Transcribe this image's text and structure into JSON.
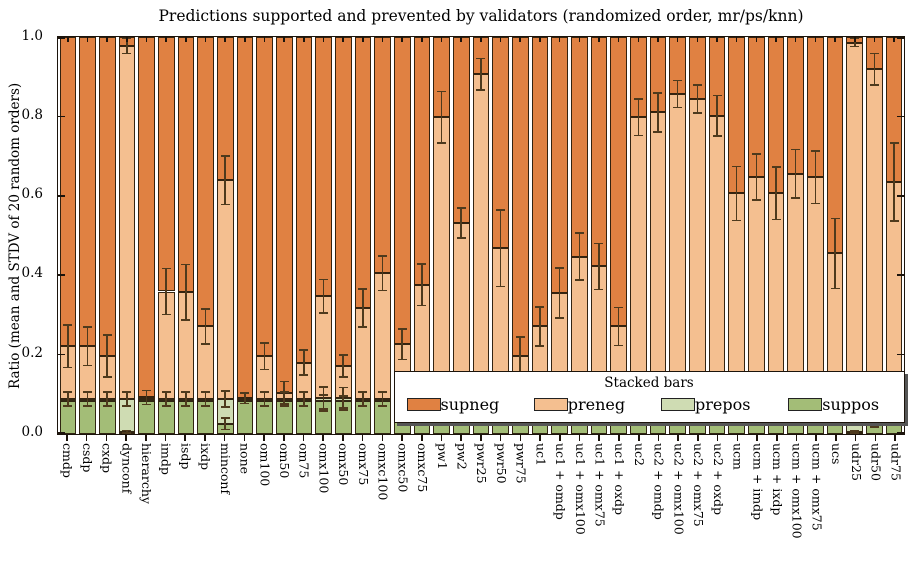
{
  "title": "Predictions supported and prevented by validators (randomized order, mr/ps/knn)",
  "ylabel": "Ratio (mean and STDV of 20 random orders)",
  "yticks": [
    "0.0",
    "0.2",
    "0.4",
    "0.6",
    "0.8",
    "1.0"
  ],
  "legend": {
    "title": "Stacked bars",
    "entries": [
      {
        "label": "supneg",
        "color": "#e08142"
      },
      {
        "label": "preneg",
        "color": "#f4bf90"
      },
      {
        "label": "prepos",
        "color": "#cfdcb3"
      },
      {
        "label": "suppos",
        "color": "#a3bd77"
      }
    ]
  },
  "colors": {
    "supneg": "#e08142",
    "preneg": "#f4bf90",
    "prepos": "#cfdcb3",
    "suppos": "#a3bd77",
    "edge": "#2a1c0c",
    "errorbar": "#4e3a1d",
    "spine": "#1c140c"
  },
  "chart_data": {
    "type": "bar",
    "variant": "stacked-vertical-with-errorbars",
    "ylim": [
      0,
      1
    ],
    "stack_order": [
      "suppos",
      "prepos",
      "preneg",
      "supneg"
    ],
    "note": "preneg_top is cumulative top of preneg segment; supneg fills to 1.0; stdv is error bar at preneg/supneg boundary; base_stdv is error bar at green-stack top (~0.088)",
    "bars": [
      {
        "label": "cmdp",
        "suppos": 0.083,
        "prepos": 0.005,
        "preneg_top": 0.221,
        "stdv": 0.055,
        "base_stdv": 0.02
      },
      {
        "label": "csdp",
        "suppos": 0.083,
        "prepos": 0.005,
        "preneg_top": 0.221,
        "stdv": 0.05,
        "base_stdv": 0.02
      },
      {
        "label": "cxdp",
        "suppos": 0.083,
        "prepos": 0.005,
        "preneg_top": 0.196,
        "stdv": 0.055,
        "base_stdv": 0.02
      },
      {
        "label": "dynconf",
        "suppos": 0.004,
        "prepos": 0.084,
        "preneg_top": 0.977,
        "stdv": 0.021,
        "base_stdv": 0.02,
        "low_v": 0.004,
        "low_e": 0.007
      },
      {
        "label": "hierarchy",
        "suppos": 0.083,
        "prepos": 0.005,
        "preneg_top": 0.092,
        "stdv": 0.02,
        "base_stdv": 0
      },
      {
        "label": "imdp",
        "suppos": 0.083,
        "prepos": 0.005,
        "preneg_top": 0.359,
        "stdv": 0.06,
        "base_stdv": 0.02
      },
      {
        "label": "isdp",
        "suppos": 0.083,
        "prepos": 0.005,
        "preneg_top": 0.357,
        "stdv": 0.072,
        "base_stdv": 0.02
      },
      {
        "label": "ixdp",
        "suppos": 0.083,
        "prepos": 0.005,
        "preneg_top": 0.271,
        "stdv": 0.046,
        "base_stdv": 0.02
      },
      {
        "label": "minconf",
        "suppos": 0.026,
        "prepos": 0.062,
        "preneg_top": 0.639,
        "stdv": 0.063,
        "base_stdv": 0.022,
        "low_v": 0.026,
        "low_e": 0.017
      },
      {
        "label": "none",
        "suppos": 0.083,
        "prepos": 0.005,
        "preneg_top": 0.09,
        "stdv": 0.015,
        "base_stdv": 0
      },
      {
        "label": "om100",
        "suppos": 0.083,
        "prepos": 0.005,
        "preneg_top": 0.196,
        "stdv": 0.035,
        "base_stdv": 0.02
      },
      {
        "label": "om50",
        "suppos": 0.083,
        "prepos": 0.005,
        "preneg_top": 0.104,
        "stdv": 0.03,
        "base_stdv": 0.02
      },
      {
        "label": "om75",
        "suppos": 0.083,
        "prepos": 0.005,
        "preneg_top": 0.18,
        "stdv": 0.034,
        "base_stdv": 0.02
      },
      {
        "label": "omx100",
        "suppos": 0.083,
        "prepos": 0.008,
        "preneg_top": 0.347,
        "stdv": 0.044,
        "base_stdv": 0.03,
        "low_v": 0.078,
        "low_e": 0.022
      },
      {
        "label": "omx50",
        "suppos": 0.083,
        "prepos": 0.008,
        "preneg_top": 0.171,
        "stdv": 0.03,
        "base_stdv": 0.028,
        "low_v": 0.078,
        "low_e": 0.02
      },
      {
        "label": "omx75",
        "suppos": 0.083,
        "prepos": 0.005,
        "preneg_top": 0.318,
        "stdv": 0.05,
        "base_stdv": 0.02
      },
      {
        "label": "omxc100",
        "suppos": 0.083,
        "prepos": 0.005,
        "preneg_top": 0.405,
        "stdv": 0.045,
        "base_stdv": 0.02
      },
      {
        "label": "omxc50",
        "suppos": 0.083,
        "prepos": 0.005,
        "preneg_top": 0.226,
        "stdv": 0.04,
        "base_stdv": 0.02
      },
      {
        "label": "omxc75",
        "suppos": 0.083,
        "prepos": 0.005,
        "preneg_top": 0.376,
        "stdv": 0.054,
        "base_stdv": 0.02
      },
      {
        "label": "pw1",
        "suppos": 0.083,
        "prepos": 0.005,
        "preneg_top": 0.798,
        "stdv": 0.067,
        "base_stdv": 0.02
      },
      {
        "label": "pw2",
        "suppos": 0.083,
        "prepos": 0.005,
        "preneg_top": 0.531,
        "stdv": 0.04,
        "base_stdv": 0.02
      },
      {
        "label": "pwr25",
        "suppos": 0.083,
        "prepos": 0.005,
        "preneg_top": 0.906,
        "stdv": 0.042,
        "base_stdv": 0.02
      },
      {
        "label": "pwr50",
        "suppos": 0.083,
        "prepos": 0.005,
        "preneg_top": 0.468,
        "stdv": 0.098,
        "base_stdv": 0.02
      },
      {
        "label": "pwr75",
        "suppos": 0.083,
        "prepos": 0.005,
        "preneg_top": 0.196,
        "stdv": 0.05,
        "base_stdv": 0.02
      },
      {
        "label": "uc1",
        "suppos": 0.083,
        "prepos": 0.005,
        "preneg_top": 0.271,
        "stdv": 0.051,
        "base_stdv": 0.02
      },
      {
        "label": "uc1 + omdp",
        "suppos": 0.083,
        "prepos": 0.005,
        "preneg_top": 0.355,
        "stdv": 0.065,
        "base_stdv": 0.02
      },
      {
        "label": "uc1 + omx100",
        "suppos": 0.083,
        "prepos": 0.005,
        "preneg_top": 0.447,
        "stdv": 0.061,
        "base_stdv": 0.02
      },
      {
        "label": "uc1 + omx75",
        "suppos": 0.083,
        "prepos": 0.005,
        "preneg_top": 0.422,
        "stdv": 0.06,
        "base_stdv": 0.02
      },
      {
        "label": "uc1 + oxdp",
        "suppos": 0.083,
        "prepos": 0.005,
        "preneg_top": 0.271,
        "stdv": 0.05,
        "base_stdv": 0.02
      },
      {
        "label": "uc2",
        "suppos": 0.083,
        "prepos": 0.005,
        "preneg_top": 0.798,
        "stdv": 0.048,
        "base_stdv": 0.02
      },
      {
        "label": "uc2 + omdp",
        "suppos": 0.083,
        "prepos": 0.005,
        "preneg_top": 0.81,
        "stdv": 0.051,
        "base_stdv": 0.02
      },
      {
        "label": "uc2 + omx100",
        "suppos": 0.083,
        "prepos": 0.005,
        "preneg_top": 0.856,
        "stdv": 0.036,
        "base_stdv": 0.02
      },
      {
        "label": "uc2 + omx75",
        "suppos": 0.083,
        "prepos": 0.005,
        "preneg_top": 0.844,
        "stdv": 0.037,
        "base_stdv": 0.02
      },
      {
        "label": "uc2 + oxdp",
        "suppos": 0.083,
        "prepos": 0.005,
        "preneg_top": 0.802,
        "stdv": 0.053,
        "base_stdv": 0.02
      },
      {
        "label": "ucm",
        "suppos": 0.083,
        "prepos": 0.005,
        "preneg_top": 0.606,
        "stdv": 0.07,
        "base_stdv": 0.02
      },
      {
        "label": "ucm + imdp",
        "suppos": 0.083,
        "prepos": 0.005,
        "preneg_top": 0.647,
        "stdv": 0.06,
        "base_stdv": 0.02
      },
      {
        "label": "ucm + ixdp",
        "suppos": 0.083,
        "prepos": 0.005,
        "preneg_top": 0.606,
        "stdv": 0.068,
        "base_stdv": 0.02
      },
      {
        "label": "ucm + omx100",
        "suppos": 0.083,
        "prepos": 0.005,
        "preneg_top": 0.656,
        "stdv": 0.063,
        "base_stdv": 0.02
      },
      {
        "label": "ucm + omx75",
        "suppos": 0.083,
        "prepos": 0.005,
        "preneg_top": 0.647,
        "stdv": 0.068,
        "base_stdv": 0.02
      },
      {
        "label": "ucs",
        "suppos": 0.083,
        "prepos": 0.005,
        "preneg_top": 0.455,
        "stdv": 0.09,
        "base_stdv": 0.02
      },
      {
        "label": "udr25",
        "suppos": 0.004,
        "prepos": 0.084,
        "preneg_top": 0.986,
        "stdv": 0.012,
        "base_stdv": 0.018,
        "low_v": 0.004,
        "low_e": 0.006
      },
      {
        "label": "udr50",
        "suppos": 0.045,
        "prepos": 0.043,
        "preneg_top": 0.919,
        "stdv": 0.042,
        "base_stdv": 0.02,
        "low_v": 0.045,
        "low_e": 0.03
      },
      {
        "label": "udr75",
        "suppos": 0.083,
        "prepos": 0.005,
        "preneg_top": 0.635,
        "stdv": 0.1,
        "base_stdv": 0.02
      }
    ]
  }
}
